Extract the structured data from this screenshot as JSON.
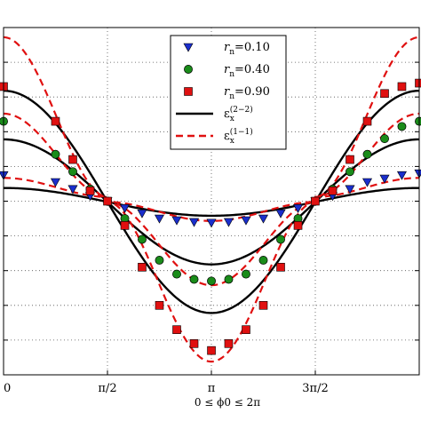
{
  "chart_data": {
    "type": "line",
    "xlabel": "0 ≤ ϕ0 ≤ 2π",
    "x_ticks": [
      {
        "value": 0,
        "label": "0"
      },
      {
        "value": 1.5708,
        "label": "π/2"
      },
      {
        "value": 3.1416,
        "label": "π"
      },
      {
        "value": 4.7124,
        "label": "3π/2"
      }
    ],
    "xlim": [
      0,
      6.2832
    ],
    "ylim": [
      -5,
      5
    ],
    "y_grid": [
      -4,
      -3,
      -2,
      -1,
      0,
      1,
      2,
      3,
      4
    ],
    "grid": true,
    "legend_position": "top-center",
    "legend": [
      {
        "symbol": "r",
        "subscript": "n",
        "value": "=0.10",
        "marker": "triangle-down",
        "color": "#1a2ecc"
      },
      {
        "symbol": "r",
        "subscript": "n",
        "value": "=0.40",
        "marker": "circle",
        "color": "#1a8c1a"
      },
      {
        "symbol": "r",
        "subscript": "n",
        "value": "=0.90",
        "marker": "square",
        "color": "#e01010"
      },
      {
        "symbol": "ε",
        "subscript": "x",
        "superscript": "(2−2)",
        "line": "solid",
        "color": "#000000"
      },
      {
        "symbol": "ε",
        "subscript": "x",
        "superscript": "(1−1)",
        "line": "dashed",
        "color": "#e01010"
      }
    ],
    "series": [
      {
        "rn": 0.1,
        "style": "solid",
        "color": "#000000",
        "center": 0.25,
        "amplitude": 0.4,
        "shape": "cosine"
      },
      {
        "rn": 0.4,
        "style": "solid",
        "color": "#000000",
        "center": 0.15,
        "amplitude": 1.8,
        "shape": "cosine"
      },
      {
        "rn": 0.9,
        "style": "solid",
        "color": "#000000",
        "center": 0.15,
        "amplitude": 3.2,
        "shape": "cosine"
      },
      {
        "rn": 0.1,
        "style": "dashed",
        "color": "#e01010",
        "center": 0.25,
        "amplitude": 0.55,
        "shape": "peaked"
      },
      {
        "rn": 0.4,
        "style": "dashed",
        "color": "#e01010",
        "center": 0.15,
        "amplitude": 2.4,
        "shape": "peaked"
      },
      {
        "rn": 0.9,
        "style": "dashed",
        "color": "#e01010",
        "center": 0.15,
        "amplitude": 4.6,
        "shape": "peaked"
      }
    ],
    "markers": [
      {
        "marker": "triangle-down",
        "color": "#1a2ecc",
        "x": [
          0.0,
          0.785,
          1.047,
          1.309,
          1.571,
          1.833,
          2.094,
          2.356,
          2.618,
          2.88,
          3.142,
          3.403,
          3.665,
          3.927,
          4.189,
          4.451,
          4.712,
          4.974,
          5.236,
          5.498,
          5.76,
          6.021,
          6.283
        ],
        "y": [
          0.75,
          0.55,
          0.35,
          0.15,
          0.0,
          -0.2,
          -0.35,
          -0.5,
          -0.55,
          -0.6,
          -0.62,
          -0.6,
          -0.55,
          -0.5,
          -0.35,
          -0.2,
          0.0,
          0.15,
          0.35,
          0.55,
          0.65,
          0.75,
          0.8
        ]
      },
      {
        "marker": "circle",
        "color": "#1a8c1a",
        "x": [
          0.0,
          0.785,
          1.047,
          1.309,
          1.571,
          1.833,
          2.094,
          2.356,
          2.618,
          2.88,
          3.142,
          3.403,
          3.665,
          3.927,
          4.189,
          4.451,
          4.712,
          4.974,
          5.236,
          5.498,
          5.76,
          6.021,
          6.283
        ],
        "y": [
          2.3,
          1.35,
          0.85,
          0.35,
          0.0,
          -0.5,
          -1.1,
          -1.7,
          -2.1,
          -2.25,
          -2.3,
          -2.25,
          -2.1,
          -1.7,
          -1.1,
          -0.5,
          0.0,
          0.35,
          0.85,
          1.35,
          1.8,
          2.15,
          2.3
        ]
      },
      {
        "marker": "square",
        "color": "#e01010",
        "x": [
          0.0,
          0.785,
          1.047,
          1.309,
          1.571,
          1.833,
          2.094,
          2.356,
          2.618,
          2.88,
          3.142,
          3.403,
          3.665,
          3.927,
          4.189,
          4.451,
          4.712,
          4.974,
          5.236,
          5.498,
          5.76,
          6.021,
          6.283
        ],
        "y": [
          3.3,
          2.3,
          1.2,
          0.3,
          0.0,
          -0.7,
          -1.9,
          -3.0,
          -3.7,
          -4.1,
          -4.3,
          -4.1,
          -3.7,
          -3.0,
          -1.9,
          -0.7,
          0.0,
          0.3,
          1.2,
          2.3,
          3.1,
          3.3,
          3.4
        ]
      }
    ]
  }
}
